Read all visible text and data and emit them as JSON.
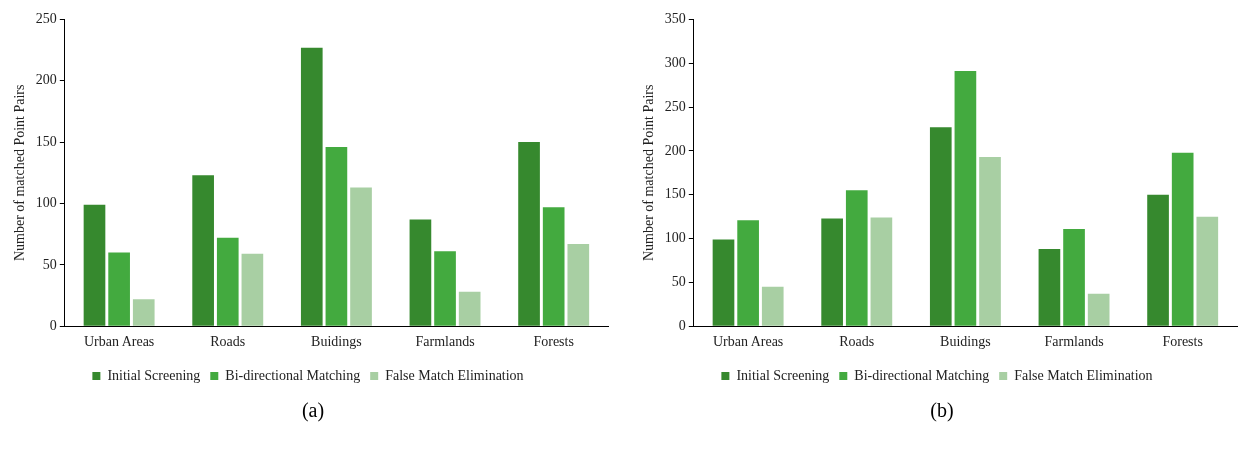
{
  "chart_data": [
    {
      "type": "bar",
      "title": "(a)",
      "ylabel": "Number of matched Point Pairs",
      "categories": [
        "Urban Areas",
        "Roads",
        "Buidings",
        "Farmlands",
        "Forests"
      ],
      "series": [
        {
          "name": "Initial Screening",
          "color": "#36892e",
          "values": [
            99,
            123,
            227,
            87,
            150
          ]
        },
        {
          "name": "Bi-directional Matching",
          "color": "#43aa3f",
          "values": [
            60,
            72,
            146,
            61,
            97
          ]
        },
        {
          "name": "False Match Elimination",
          "color": "#a8cfa3",
          "values": [
            22,
            59,
            113,
            28,
            67
          ]
        }
      ],
      "ylim": [
        0,
        250
      ],
      "yticks": [
        0,
        50,
        100,
        150,
        200,
        250
      ],
      "legend": "bottom"
    },
    {
      "type": "bar",
      "title": "(b)",
      "ylabel": "Number of matched Point Pairs",
      "categories": [
        "Urban Areas",
        "Roads",
        "Buidings",
        "Farmlands",
        "Forests"
      ],
      "series": [
        {
          "name": "Initial Screening",
          "color": "#36892e",
          "values": [
            99,
            123,
            227,
            88,
            150
          ]
        },
        {
          "name": "Bi-directional Matching",
          "color": "#43aa3f",
          "values": [
            121,
            155,
            291,
            111,
            198
          ]
        },
        {
          "name": "False Match Elimination",
          "color": "#a8cfa3",
          "values": [
            45,
            124,
            193,
            37,
            125
          ]
        }
      ],
      "ylim": [
        0,
        350
      ],
      "yticks": [
        0,
        50,
        100,
        150,
        200,
        250,
        300,
        350
      ],
      "legend": "bottom"
    }
  ]
}
